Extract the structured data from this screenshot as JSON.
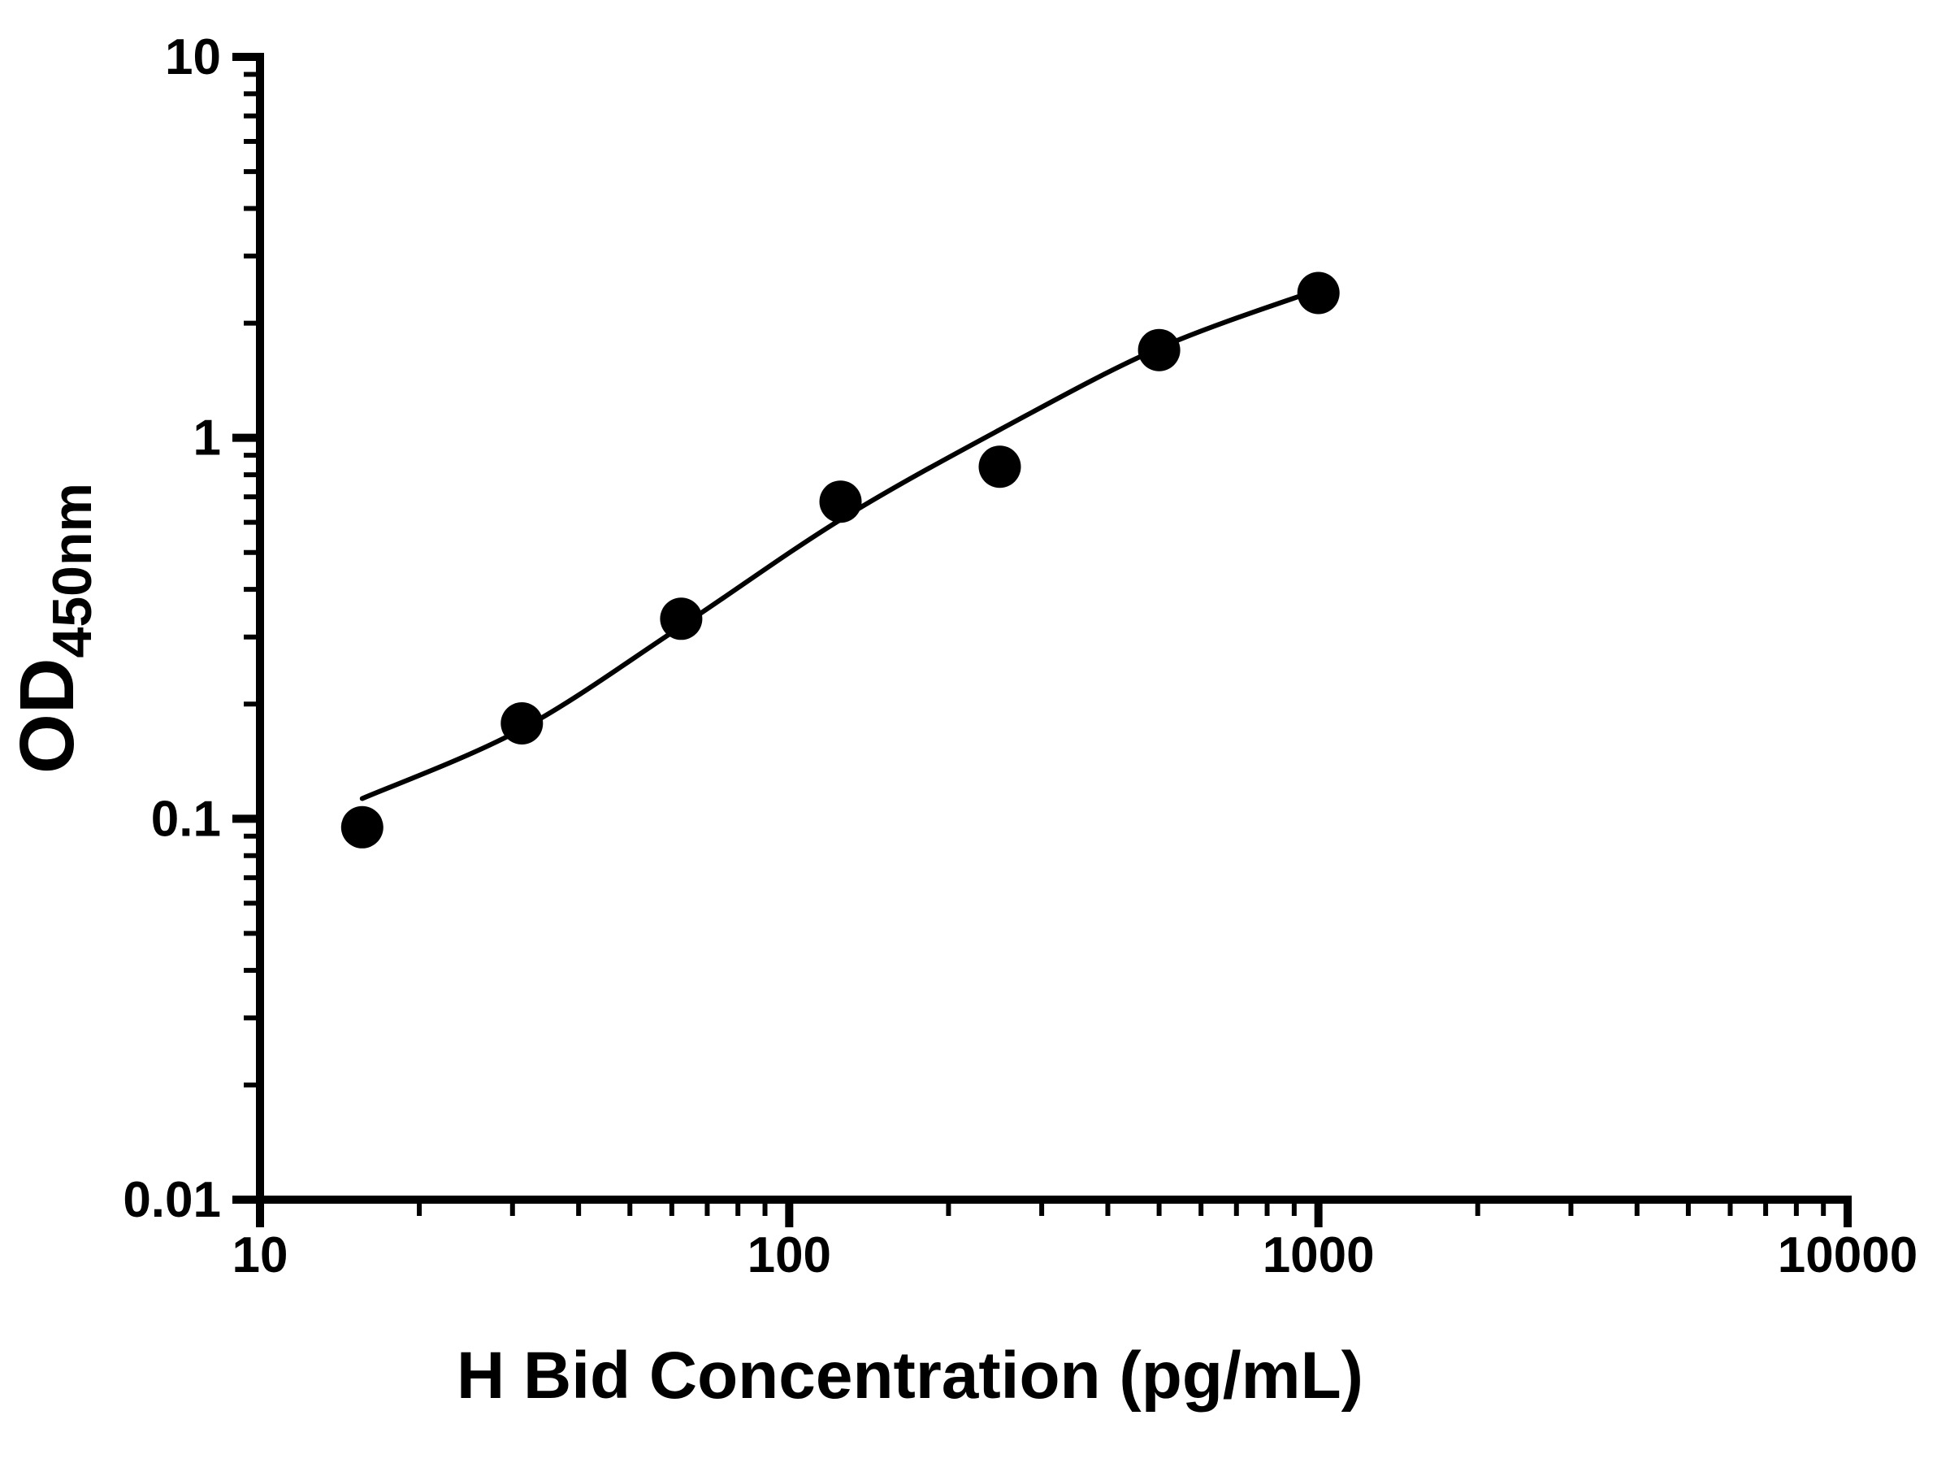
{
  "chart_data": {
    "type": "scatter",
    "title": "",
    "xlabel": "H Bid Concentration (pg/mL)",
    "ylabel_main": "OD",
    "ylabel_sub": "450nm",
    "x_scale": "log",
    "y_scale": "log",
    "xlim": [
      10,
      10000
    ],
    "ylim": [
      0.01,
      10
    ],
    "x_ticks": [
      10,
      100,
      1000,
      10000
    ],
    "x_tick_labels": [
      "10",
      "100",
      "1000",
      "10000"
    ],
    "y_ticks": [
      0.01,
      0.1,
      1,
      10
    ],
    "y_tick_labels": [
      "0.01",
      "0.1",
      "1",
      "10"
    ],
    "grid": false,
    "legend": "none",
    "points": {
      "name": "standard-curve-points",
      "x": [
        15.6,
        31.25,
        62.5,
        125,
        250,
        500,
        1000
      ],
      "y": [
        0.095,
        0.178,
        0.335,
        0.68,
        0.84,
        1.7,
        2.4
      ]
    },
    "fit_curve": {
      "name": "four-parameter-logistic-fit",
      "x": [
        15.6,
        31.25,
        62.5,
        125,
        250,
        500,
        1000
      ],
      "y": [
        0.113,
        0.172,
        0.32,
        0.61,
        1.05,
        1.72,
        2.45
      ]
    },
    "colors": {
      "points": "#000000",
      "line": "#000000",
      "axes": "#000000",
      "background": "#ffffff"
    }
  }
}
